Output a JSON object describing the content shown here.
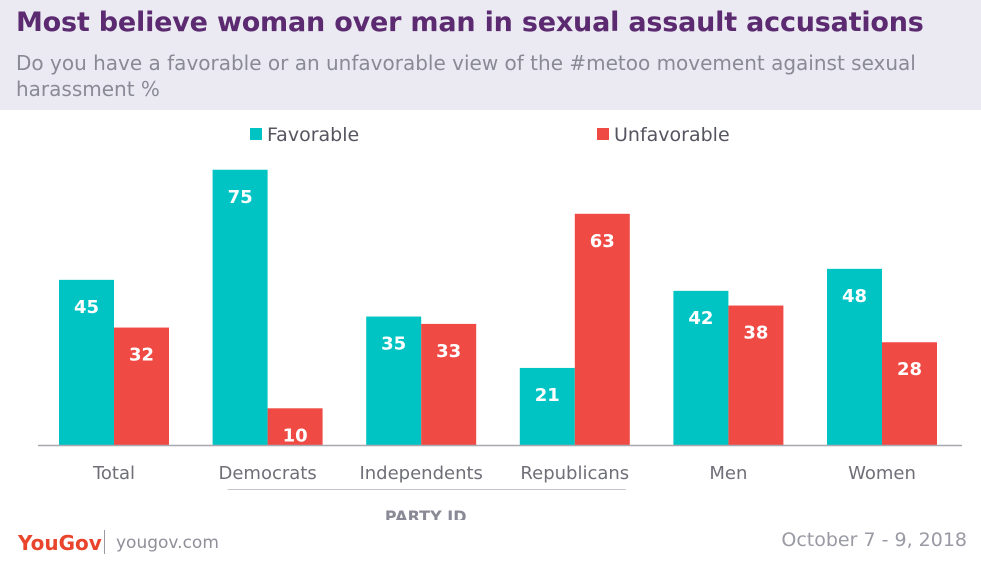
{
  "header": {
    "title": "Most believe woman over man in sexual assault accusations",
    "subtitle": "Do you have a favorable or an unfavorable view of the #metoo movement against sexual harassment %"
  },
  "colors": {
    "favorable": "#00c4c4",
    "unfavorable": "#f04a45",
    "header_bg": "#ebeaf2",
    "title": "#5b2a70",
    "brand": "#e8452c"
  },
  "chart_data": {
    "type": "bar",
    "title": "Most believe woman over man in sexual assault accusations",
    "categories": [
      "Total",
      "Democrats",
      "Independents",
      "Republicans",
      "Men",
      "Women"
    ],
    "series": [
      {
        "name": "Favorable",
        "values": [
          45,
          75,
          35,
          21,
          42,
          48
        ]
      },
      {
        "name": "Unfavorable",
        "values": [
          32,
          10,
          33,
          63,
          38,
          28
        ]
      }
    ],
    "group_label": "PARTY ID",
    "group_categories": [
      "Democrats",
      "Independents",
      "Republicans"
    ],
    "xlabel": "",
    "ylabel": "",
    "ylim": [
      0,
      80
    ],
    "grid": false,
    "legend": "top"
  },
  "footer": {
    "logo": "YouGov",
    "url": "yougov.com",
    "date": "October 7 - 9, 2018"
  }
}
